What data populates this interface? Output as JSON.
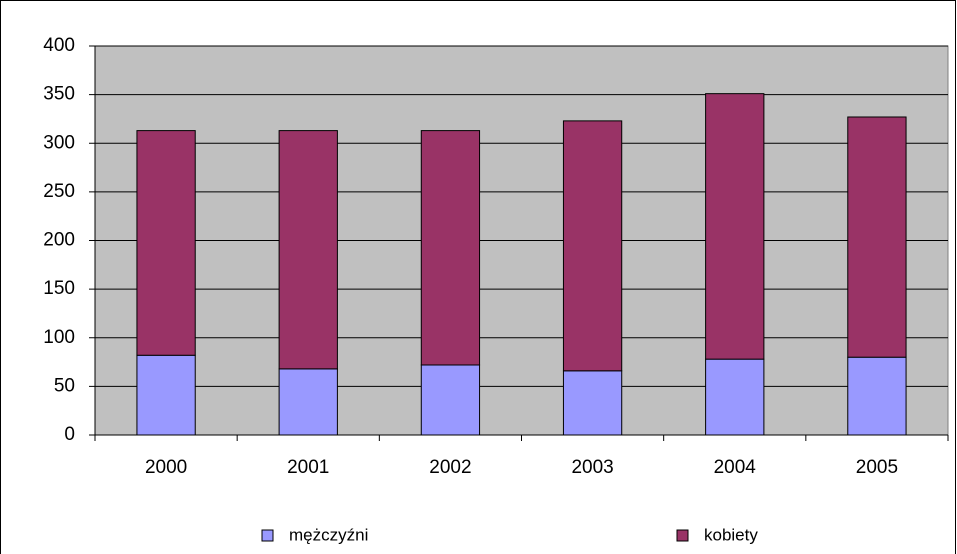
{
  "chart_data": {
    "type": "bar",
    "stacked": true,
    "categories": [
      "2000",
      "2001",
      "2002",
      "2003",
      "2004",
      "2005"
    ],
    "series": [
      {
        "name": "mężczyźni",
        "color": "#9999ff",
        "values": [
          82,
          68,
          72,
          66,
          78,
          80
        ]
      },
      {
        "name": "kobiety",
        "color": "#993366",
        "values": [
          231,
          245,
          241,
          257,
          273,
          247
        ]
      }
    ],
    "ylim": [
      0,
      400
    ],
    "yticks": [
      0,
      50,
      100,
      150,
      200,
      250,
      300,
      350,
      400
    ],
    "grid": true,
    "legend": "bottom"
  }
}
